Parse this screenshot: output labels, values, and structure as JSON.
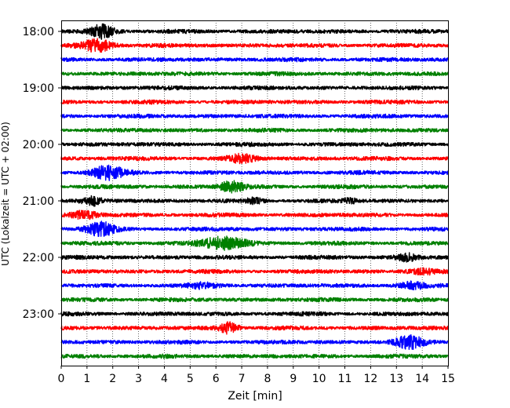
{
  "chart_data": {
    "type": "line",
    "xlabel": "Zeit  [min]",
    "ylabel": "UTC (Lokalzeit = UTC + 02:00)",
    "xlim": [
      0,
      15
    ],
    "x_ticks": [
      "0",
      "1",
      "2",
      "3",
      "4",
      "5",
      "6",
      "7",
      "8",
      "9",
      "10",
      "11",
      "12",
      "13",
      "14",
      "15"
    ],
    "y_tick_labels": [
      "18:00",
      "19:00",
      "20:00",
      "21:00",
      "22:00",
      "23:00"
    ],
    "y_tick_rows": [
      0,
      4,
      8,
      12,
      16,
      20
    ],
    "grid": "vertical-dotted",
    "trace_colors": [
      "#000000",
      "#ff0000",
      "#0000ff",
      "#008000"
    ],
    "traces": [
      {
        "start": "18:00",
        "events": [
          {
            "t": 1.6,
            "amp": 1.0,
            "w": 0.45
          }
        ]
      },
      {
        "start": "18:15",
        "events": [
          {
            "t": 1.4,
            "amp": 0.9,
            "w": 0.6
          }
        ]
      },
      {
        "start": "18:30",
        "events": []
      },
      {
        "start": "18:45",
        "events": []
      },
      {
        "start": "19:00",
        "events": []
      },
      {
        "start": "19:15",
        "events": []
      },
      {
        "start": "19:30",
        "events": []
      },
      {
        "start": "19:45",
        "events": []
      },
      {
        "start": "20:00",
        "events": []
      },
      {
        "start": "20:15",
        "events": [
          {
            "t": 7.0,
            "amp": 0.55,
            "w": 0.5
          }
        ]
      },
      {
        "start": "20:30",
        "events": [
          {
            "t": 1.8,
            "amp": 1.0,
            "w": 0.6
          }
        ]
      },
      {
        "start": "20:45",
        "events": [
          {
            "t": 6.6,
            "amp": 0.8,
            "w": 0.45
          }
        ]
      },
      {
        "start": "21:00",
        "events": [
          {
            "t": 1.2,
            "amp": 0.6,
            "w": 0.35
          },
          {
            "t": 7.5,
            "amp": 0.35,
            "w": 0.3
          },
          {
            "t": 11.2,
            "amp": 0.3,
            "w": 0.3
          }
        ]
      },
      {
        "start": "21:15",
        "events": [
          {
            "t": 0.9,
            "amp": 0.55,
            "w": 0.5
          }
        ]
      },
      {
        "start": "21:30",
        "events": [
          {
            "t": 1.5,
            "amp": 1.0,
            "w": 0.55
          }
        ]
      },
      {
        "start": "21:45",
        "events": [
          {
            "t": 6.3,
            "amp": 0.9,
            "w": 0.9
          }
        ]
      },
      {
        "start": "22:00",
        "events": [
          {
            "t": 13.4,
            "amp": 0.5,
            "w": 0.4
          }
        ]
      },
      {
        "start": "22:15",
        "events": [
          {
            "t": 14.0,
            "amp": 0.4,
            "w": 0.5
          }
        ]
      },
      {
        "start": "22:30",
        "events": [
          {
            "t": 5.5,
            "amp": 0.3,
            "w": 0.6
          },
          {
            "t": 13.6,
            "amp": 0.45,
            "w": 0.5
          }
        ]
      },
      {
        "start": "22:45",
        "events": []
      },
      {
        "start": "23:00",
        "events": []
      },
      {
        "start": "23:15",
        "events": [
          {
            "t": 6.5,
            "amp": 0.8,
            "w": 0.4
          }
        ]
      },
      {
        "start": "23:30",
        "events": [
          {
            "t": 13.5,
            "amp": 0.9,
            "w": 0.55
          }
        ]
      },
      {
        "start": "23:45",
        "events": []
      }
    ]
  }
}
